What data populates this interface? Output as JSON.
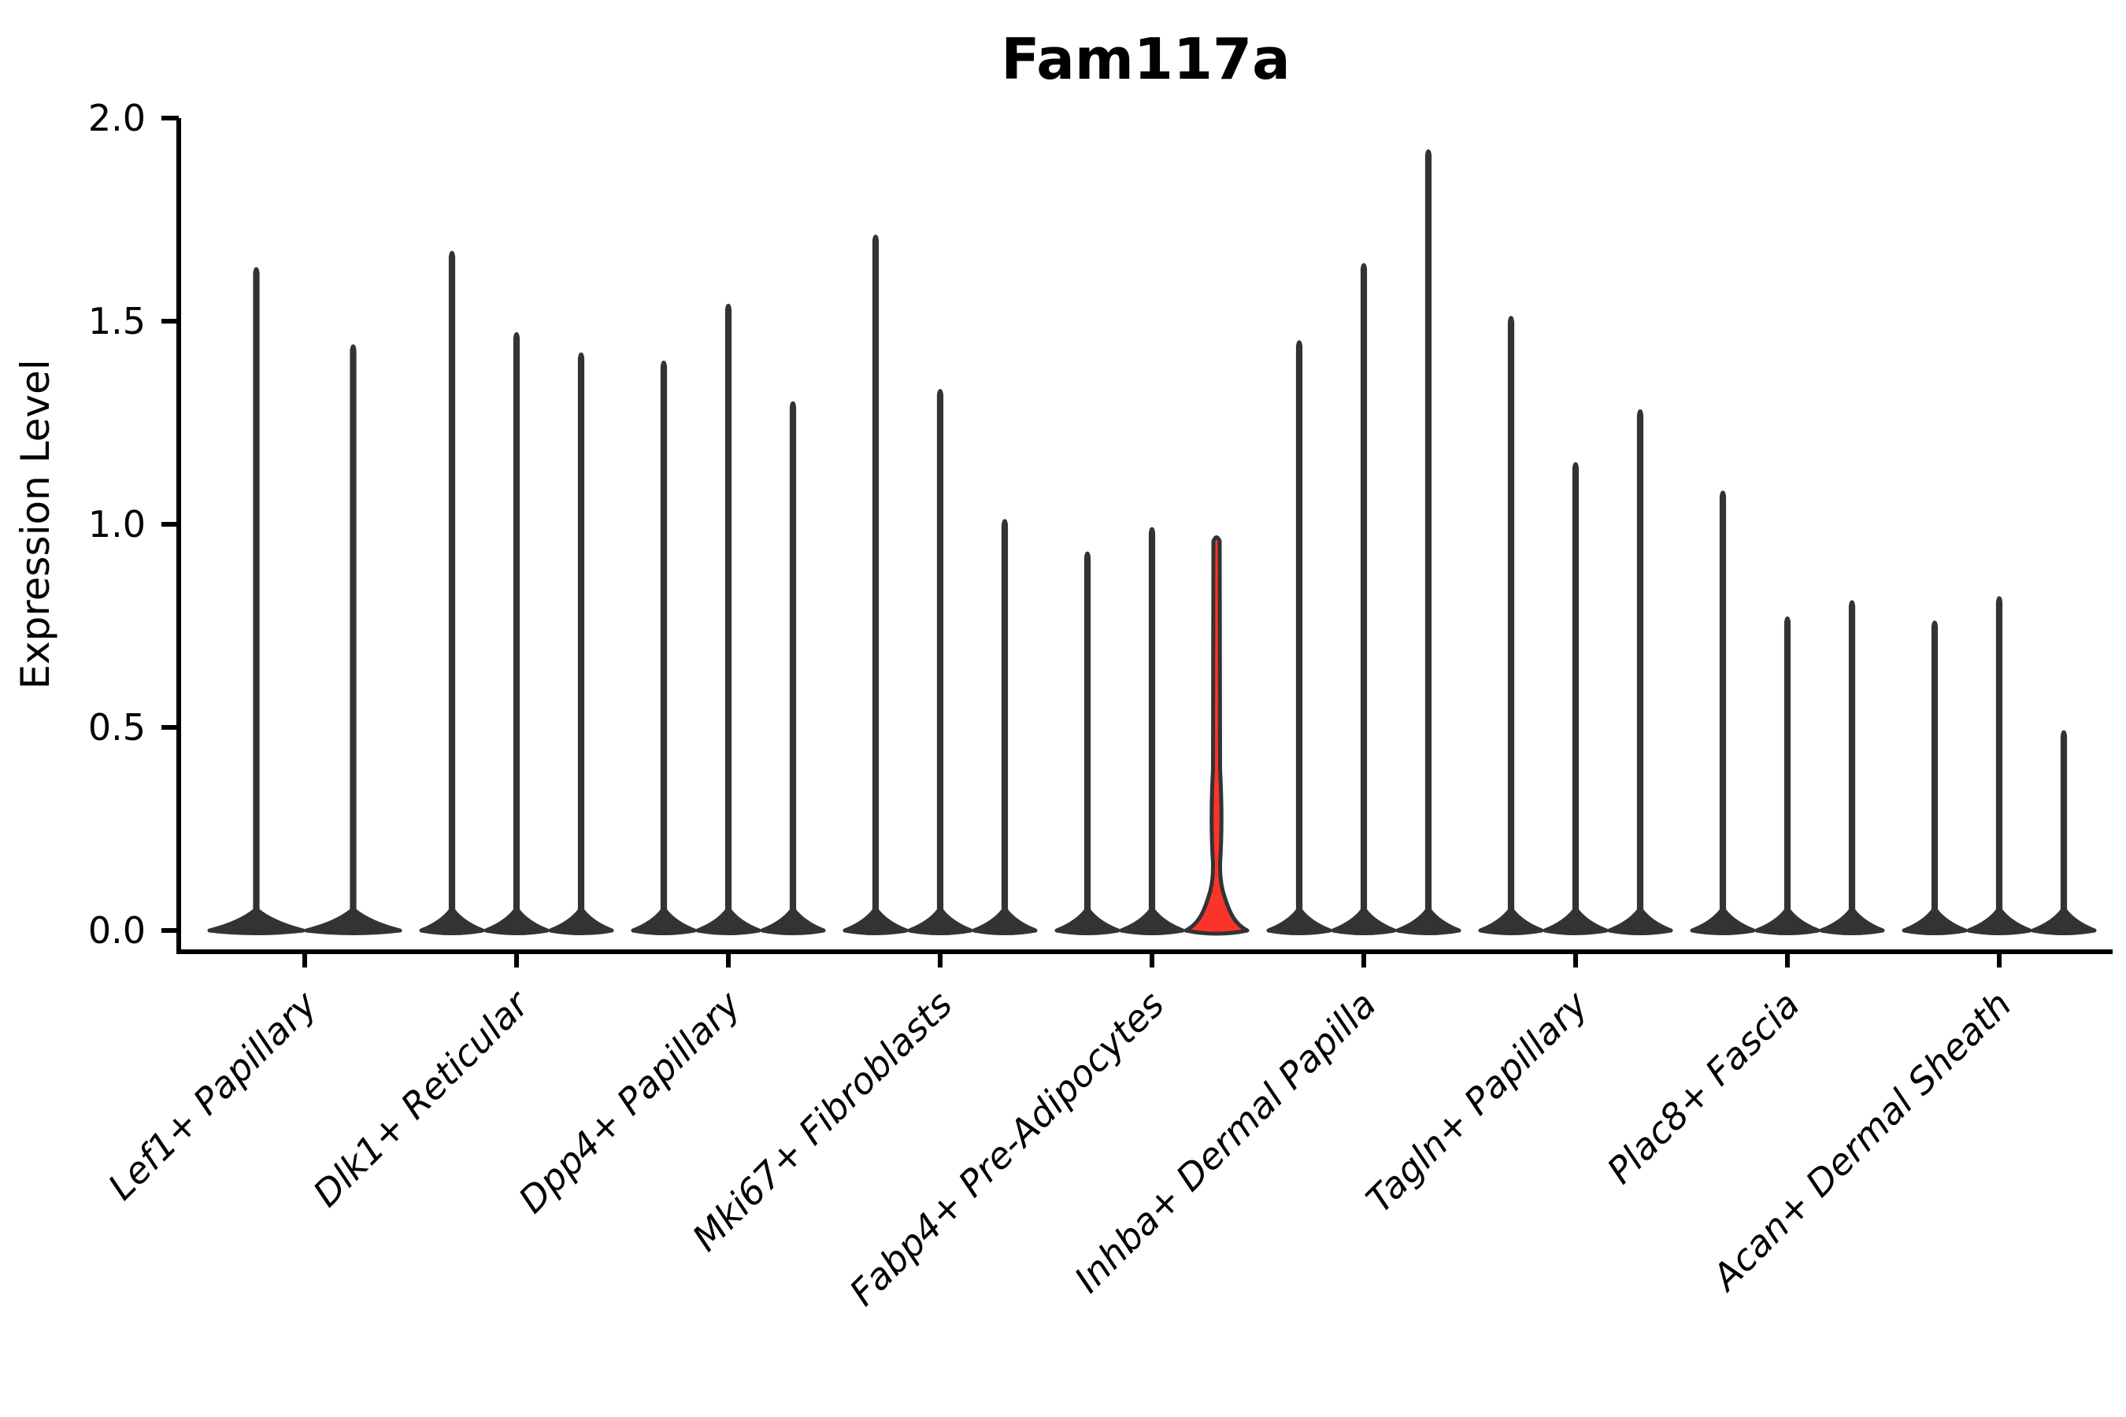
{
  "figure": {
    "background": "#ffffff",
    "axis_color": "#000000",
    "violin_outline": "#333333",
    "violin_fill_default": "#333333",
    "highlight_fill": "#fa342b"
  },
  "chart_data": {
    "type": "violin",
    "title": "Fam117a",
    "xlabel": "",
    "ylabel": "Expression Level",
    "ylim": [
      0.0,
      2.0
    ],
    "grid": false,
    "legend": "none",
    "yticks": [
      {
        "value": 0.0,
        "label": "0.0"
      },
      {
        "value": 0.5,
        "label": "0.5"
      },
      {
        "value": 1.0,
        "label": "1.0"
      },
      {
        "value": 1.5,
        "label": "1.5"
      },
      {
        "value": 2.0,
        "label": "2.0"
      }
    ],
    "categories": [
      "Lef1+ Papillary",
      "Dlk1+ Reticular",
      "Dpp4+ Papillary",
      "Mki67+ Fibroblasts",
      "Fabp4+ Pre-Adipocytes",
      "Inhba+ Dermal Papilla",
      "Tagln+ Papillary",
      "Plac8+ Fascia",
      "Acan+ Dermal Sheath"
    ],
    "groups": [
      {
        "category": "Lef1+ Papillary",
        "violins": [
          {
            "max": 1.63
          },
          {
            "max": 1.44
          }
        ]
      },
      {
        "category": "Dlk1+ Reticular",
        "violins": [
          {
            "max": 1.67
          },
          {
            "max": 1.47
          },
          {
            "max": 1.42
          }
        ]
      },
      {
        "category": "Dpp4+ Papillary",
        "violins": [
          {
            "max": 1.4
          },
          {
            "max": 1.54
          },
          {
            "max": 1.3
          }
        ]
      },
      {
        "category": "Mki67+ Fibroblasts",
        "violins": [
          {
            "max": 1.71
          },
          {
            "max": 1.33
          },
          {
            "max": 1.01
          }
        ]
      },
      {
        "category": "Fabp4+ Pre-Adipocytes",
        "violins": [
          {
            "max": 0.93
          },
          {
            "max": 0.99
          },
          {
            "max": 0.97,
            "highlight": true,
            "base_bulge_height": 0.12
          }
        ]
      },
      {
        "category": "Inhba+ Dermal Papilla",
        "violins": [
          {
            "max": 1.45
          },
          {
            "max": 1.64
          },
          {
            "max": 1.92
          }
        ]
      },
      {
        "category": "Tagln+ Papillary",
        "violins": [
          {
            "max": 1.51
          },
          {
            "max": 1.15
          },
          {
            "max": 1.28
          }
        ]
      },
      {
        "category": "Plac8+ Fascia",
        "violins": [
          {
            "max": 1.08
          },
          {
            "max": 0.77
          },
          {
            "max": 0.81
          }
        ]
      },
      {
        "category": "Acan+ Dermal Sheath",
        "violins": [
          {
            "max": 0.76
          },
          {
            "max": 0.82
          },
          {
            "max": 0.49
          }
        ]
      }
    ],
    "notes": "Expression concentrated near 0 for all violins (thin spikes with flat bases); only the highlighted violin shows a visible density bulge near 0."
  }
}
